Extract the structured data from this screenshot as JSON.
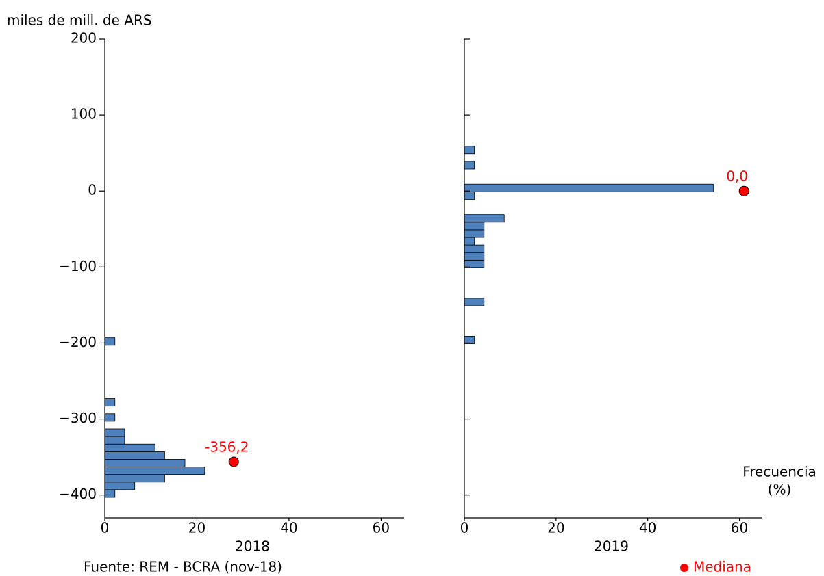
{
  "chart_data": [
    {
      "type": "histogram",
      "orientation": "horizontal",
      "x_label": "2018",
      "color": "#4f81bd",
      "bins": [
        -403,
        -393,
        -383,
        -373,
        -363,
        -353,
        -343,
        -333,
        -323,
        -313,
        -303,
        -293,
        -283,
        -273,
        -263,
        -253,
        -243,
        -233,
        -223,
        -213,
        -203,
        -193
      ],
      "values": [
        2.2,
        6.5,
        13,
        21.7,
        17.4,
        13,
        10.9,
        4.3,
        4.3,
        0,
        2.2,
        0,
        2.2,
        0,
        0,
        0,
        0,
        0,
        0,
        0,
        2.2
      ],
      "xlim": [
        0,
        65
      ],
      "xticks": [
        0,
        20,
        40,
        60
      ],
      "ylim": [
        -430,
        200
      ],
      "yticks": [
        {
          "value": -400,
          "label": "−400"
        },
        {
          "value": -300,
          "label": "−300"
        },
        {
          "value": -200,
          "label": "−200"
        },
        {
          "value": -100,
          "label": "−100"
        },
        0,
        100,
        200
      ],
      "median": {
        "x": 28,
        "y": -356.2,
        "value_label": "-356,2",
        "color": "#ff0000"
      }
    },
    {
      "type": "histogram",
      "orientation": "horizontal",
      "x_label": "2019",
      "color": "#4f81bd",
      "bins": [
        -201,
        -191,
        -181,
        -171,
        -161,
        -151,
        -141,
        -131,
        -121,
        -111,
        -101,
        -91,
        -81,
        -71,
        -61,
        -51,
        -41,
        -31,
        -21,
        -11,
        -1,
        9,
        19,
        29,
        39,
        49,
        59
      ],
      "values": [
        2.2,
        0,
        0,
        0,
        0,
        4.3,
        0,
        0,
        0,
        0,
        4.3,
        4.3,
        4.3,
        2.2,
        4.3,
        4.3,
        8.7,
        0,
        0,
        2.2,
        54.3,
        0,
        0,
        2.2,
        0,
        2.2
      ],
      "xlim": [
        0,
        65
      ],
      "xticks": [
        0,
        20,
        40,
        60
      ],
      "ylim": [
        -430,
        200
      ],
      "yticks": [
        -400,
        -300,
        -200,
        -100,
        0,
        100,
        200
      ],
      "median": {
        "x": 61,
        "y": 0,
        "value_label": "0,0",
        "color": "#ff0000"
      }
    }
  ],
  "y_axis_title": "miles de mill. de ARS",
  "x_axis_title": [
    "Frecuencia",
    "(%)"
  ],
  "legend": {
    "name": "Mediana",
    "color": "#ff0000"
  },
  "source": "Fuente: REM - BCRA (nov-18)"
}
